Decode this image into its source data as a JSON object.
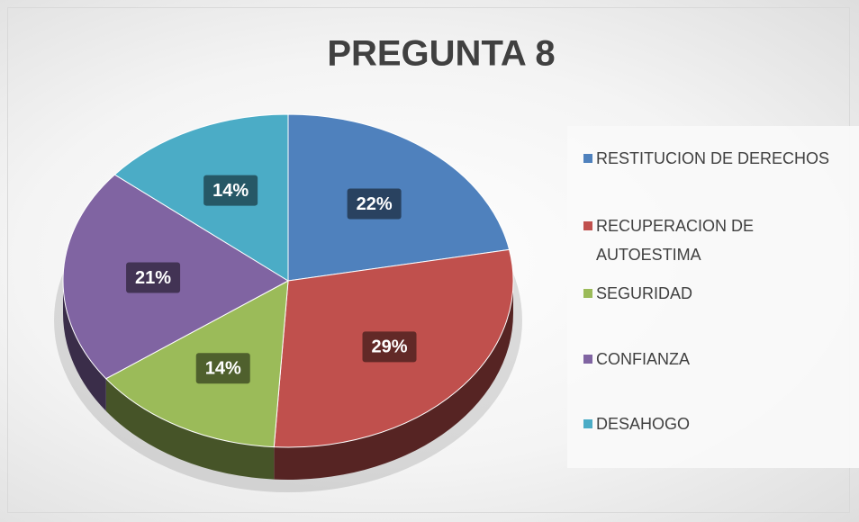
{
  "chart_data": {
    "type": "pie",
    "title": "PREGUNTA 8",
    "categories": [
      "RESTITUCION DE DERECHOS",
      "RECUPERACION DE AUTOESTIMA",
      "SEGURIDAD",
      "CONFIANZA",
      "DESAHOGO"
    ],
    "values": [
      22,
      29,
      14,
      21,
      14
    ],
    "value_labels": [
      "22%",
      "29%",
      "14%",
      "21%",
      "14%"
    ],
    "colors": [
      "#4f81bd",
      "#c0504d",
      "#9bbb59",
      "#8064a2",
      "#4bacc6"
    ],
    "legend": "right"
  }
}
